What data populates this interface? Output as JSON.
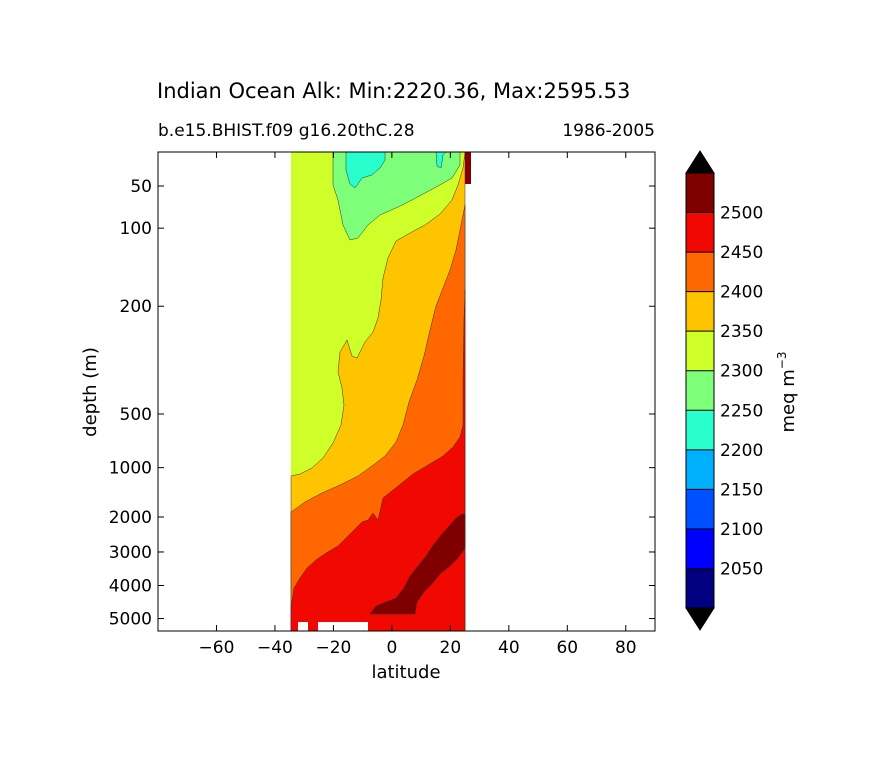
{
  "chart_data": {
    "type": "heatmap",
    "title": "Indian Ocean Alk: Min:2220.36, Max:2595.53",
    "subtitle_left": "b.e15.BHIST.f09 g16.20thC.28",
    "subtitle_right": "1986-2005",
    "xlabel": "latitude",
    "ylabel": "depth (m)",
    "xlim": [
      -80,
      90
    ],
    "x_ticks": [
      -60,
      -40,
      -20,
      0,
      20,
      40,
      60,
      80
    ],
    "x_tick_labels": [
      "−60",
      "−40",
      "−20",
      "0",
      "20",
      "40",
      "60",
      "80"
    ],
    "y_ticks": [
      50,
      100,
      200,
      500,
      1000,
      2000,
      3000,
      4000,
      5000
    ],
    "y_tick_labels": [
      "50",
      "100",
      "200",
      "500",
      "1000",
      "2000",
      "3000",
      "4000",
      "5000"
    ],
    "data_lat_range": [
      -34,
      25
    ],
    "colorbar": {
      "label": "meq m",
      "label_exponent": "−3",
      "extend": "both",
      "levels": [
        2000,
        2050,
        2100,
        2150,
        2200,
        2250,
        2300,
        2350,
        2400,
        2450,
        2500,
        2550
      ],
      "tick_labels": [
        "2050",
        "2100",
        "2150",
        "2200",
        "2250",
        "2300",
        "2350",
        "2400",
        "2450",
        "2500"
      ],
      "colors": [
        "#000080",
        "#0000ff",
        "#0050ff",
        "#00b0ff",
        "#29ffce",
        "#7dff7a",
        "#ceff29",
        "#ffc400",
        "#ff6800",
        "#f10800",
        "#800000"
      ],
      "under_color": "#000000",
      "over_color": "#000000"
    },
    "contour_regions": [
      {
        "range": "2200-2250",
        "color": "#29ffce"
      },
      {
        "range": "2250-2300",
        "color": "#7dff7a"
      },
      {
        "range": "2300-2350",
        "color": "#ceff29"
      },
      {
        "range": "2350-2400",
        "color": "#ffc400"
      },
      {
        "range": "2400-2450",
        "color": "#ff6800"
      },
      {
        "range": "2450-2500",
        "color": "#f10800"
      },
      {
        "range": "2500-2550",
        "color": "#800000"
      }
    ]
  }
}
